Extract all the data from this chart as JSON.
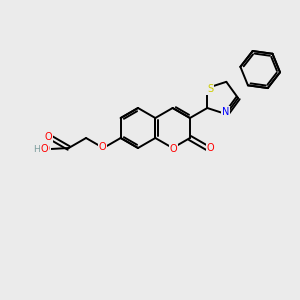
{
  "background_color": "#ebebeb",
  "bond_color": "#000000",
  "atom_colors": {
    "O": "#ff0000",
    "N": "#0000ff",
    "S": "#cccc00",
    "H": "#7f9f9f",
    "C": "#000000"
  },
  "figsize": [
    3.0,
    3.0
  ],
  "dpi": 100
}
